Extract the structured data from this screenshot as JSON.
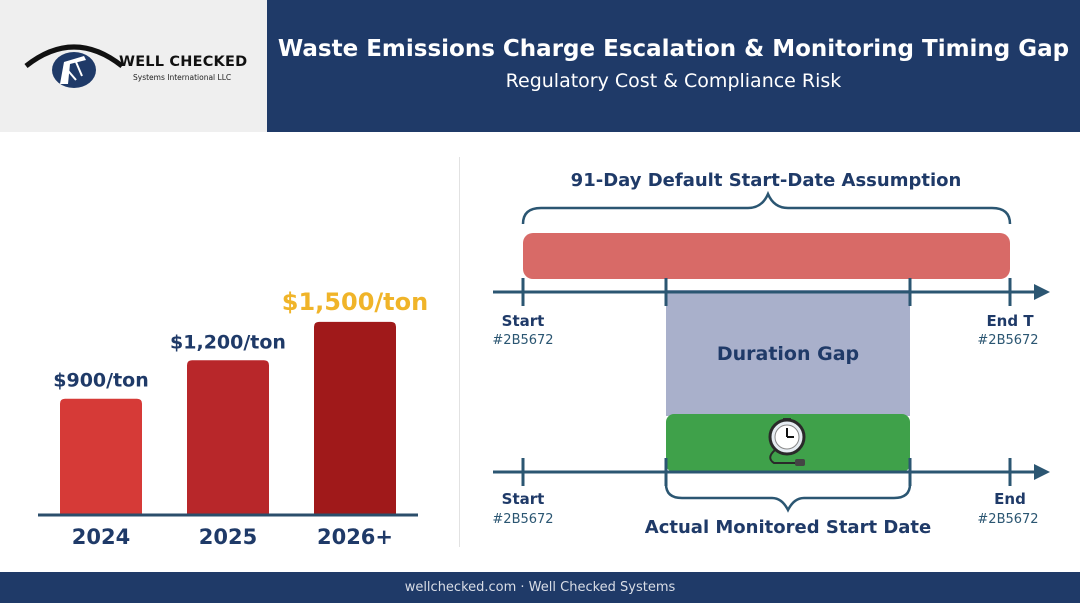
{
  "logo": {
    "name": "WELL CHECKED",
    "subtitle": "Systems International LLC"
  },
  "header": {
    "title": "Waste Emissions Charge Escalation & Monitoring Timing Gap",
    "subtitle": "Regulatory Cost & Compliance Risk"
  },
  "chart_data": {
    "type": "bar",
    "categories": [
      "2024",
      "2025",
      "2026+"
    ],
    "values": [
      900,
      1200,
      1500
    ],
    "data_labels": [
      "$900/ton",
      "$1,200/ton",
      "$1,500/ton"
    ],
    "title": "",
    "xlabel": "",
    "ylabel": "",
    "ylim": [
      0,
      1600
    ],
    "grid": false,
    "colors": {
      "bars": [
        "#d63a37",
        "#b8272a",
        "#a0191a"
      ],
      "label": "#1f3a68",
      "highlight_label": "#f0b429"
    }
  },
  "timeline": {
    "top_caption": "91-Day Default Start-Date Assumption",
    "top_start_label": "Start",
    "top_start_code": "#2B5672",
    "top_end_label": "End T",
    "top_end_code": "#2B5672",
    "gap_label": "Duration Gap",
    "bottom_start_label": "Start",
    "bottom_start_code": "#2B5672",
    "bottom_end_label": "End",
    "bottom_end_code": "#2B5672",
    "bottom_caption": "Actual Monitored Start Date",
    "icon": "stopwatch-icon",
    "colors": {
      "assumed_bar": "#d86a67",
      "gap": "#a9b0cb",
      "monitored_bar": "#3fa14a",
      "axis": "#2b5672",
      "text": "#1f3a68"
    }
  },
  "footer": {
    "text": "wellchecked.com · Well Checked Systems"
  }
}
